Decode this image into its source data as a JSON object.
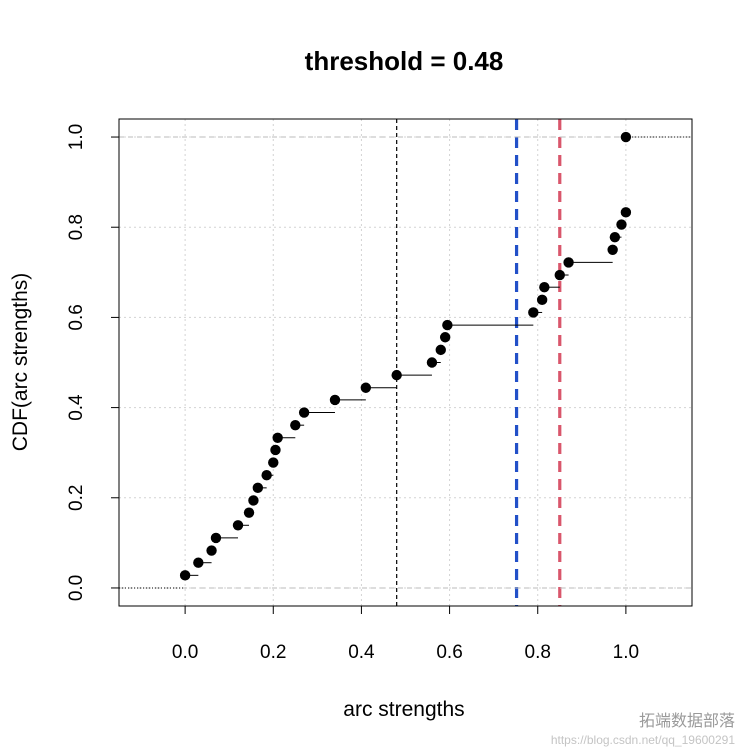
{
  "chart_data": {
    "type": "scatter",
    "title": "threshold =  0.48",
    "xlabel": "arc strengths",
    "ylabel": "CDF(arc strengths)",
    "xlim": [
      -0.15,
      1.15
    ],
    "ylim": [
      -0.04,
      1.04
    ],
    "xticks": [
      0.0,
      0.2,
      0.4,
      0.6,
      0.8,
      1.0
    ],
    "xtick_labels": [
      "0.0",
      "0.2",
      "0.4",
      "0.6",
      "0.8",
      "1.0"
    ],
    "yticks": [
      0.0,
      0.2,
      0.4,
      0.6,
      0.8,
      1.0
    ],
    "ytick_labels": [
      "0.0",
      "0.2",
      "0.4",
      "0.6",
      "0.8",
      "1.0"
    ],
    "grid": true,
    "step_points": [
      {
        "x": 0.0,
        "y": 0.028
      },
      {
        "x": 0.03,
        "y": 0.056
      },
      {
        "x": 0.06,
        "y": 0.083
      },
      {
        "x": 0.07,
        "y": 0.111
      },
      {
        "x": 0.12,
        "y": 0.139
      },
      {
        "x": 0.145,
        "y": 0.167
      },
      {
        "x": 0.155,
        "y": 0.194
      },
      {
        "x": 0.165,
        "y": 0.222
      },
      {
        "x": 0.185,
        "y": 0.25
      },
      {
        "x": 0.2,
        "y": 0.278
      },
      {
        "x": 0.205,
        "y": 0.306
      },
      {
        "x": 0.21,
        "y": 0.333
      },
      {
        "x": 0.25,
        "y": 0.361
      },
      {
        "x": 0.27,
        "y": 0.389
      },
      {
        "x": 0.34,
        "y": 0.417
      },
      {
        "x": 0.41,
        "y": 0.444
      },
      {
        "x": 0.48,
        "y": 0.472
      },
      {
        "x": 0.56,
        "y": 0.5
      },
      {
        "x": 0.58,
        "y": 0.528
      },
      {
        "x": 0.59,
        "y": 0.556
      },
      {
        "x": 0.595,
        "y": 0.583
      },
      {
        "x": 0.79,
        "y": 0.611
      },
      {
        "x": 0.81,
        "y": 0.639
      },
      {
        "x": 0.815,
        "y": 0.667
      },
      {
        "x": 0.85,
        "y": 0.694
      },
      {
        "x": 0.87,
        "y": 0.722
      },
      {
        "x": 0.97,
        "y": 0.75
      },
      {
        "x": 0.975,
        "y": 0.778
      },
      {
        "x": 0.99,
        "y": 0.806
      },
      {
        "x": 1.0,
        "y": 0.833
      },
      {
        "x": 1.0,
        "y": 1.0
      }
    ],
    "reference_lines": [
      {
        "kind": "vertical",
        "x": 0.48,
        "color": "#000000",
        "style": "dashed-thin"
      },
      {
        "kind": "vertical",
        "x": 0.752,
        "color": "#2250c8",
        "style": "dashed-thick"
      },
      {
        "kind": "vertical",
        "x": 0.85,
        "color": "#d9566b",
        "style": "dashed-thick"
      },
      {
        "kind": "horizontal",
        "y": 0.0,
        "color": "#bbbbbb",
        "style": "dashed"
      },
      {
        "kind": "horizontal",
        "y": 1.0,
        "color": "#bbbbbb",
        "style": "dashed"
      }
    ],
    "colors": {
      "points": "#000000",
      "grid": "#d3d3d3"
    }
  },
  "watermark": {
    "main": "拓端数据部落",
    "url": "https://blog.csdn.net/qq_19600291"
  }
}
